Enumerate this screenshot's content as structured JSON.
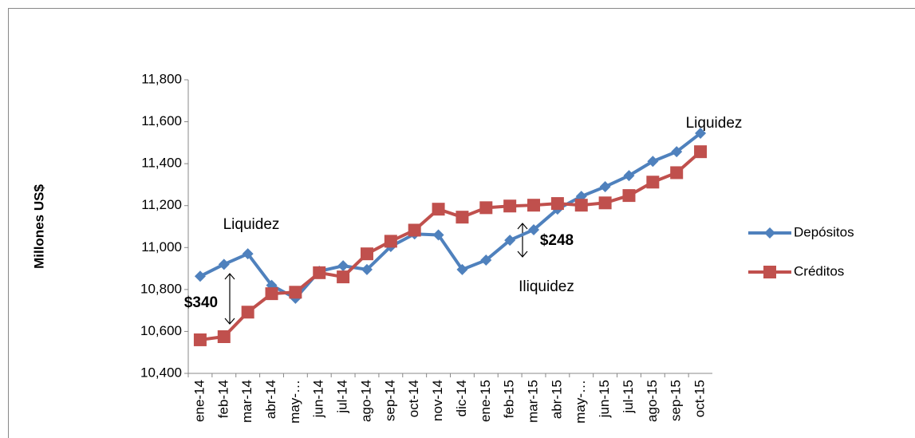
{
  "chart_data": {
    "type": "line",
    "y_label": "Millones US$",
    "categories": [
      "ene-14",
      "feb-14",
      "mar-14",
      "abr-14",
      "may-…",
      "jun-14",
      "jul-14",
      "ago-14",
      "sep-14",
      "oct-14",
      "nov-14",
      "dic-14",
      "ene-15",
      "feb-15",
      "mar-15",
      "abr-15",
      "may-…",
      "jun-15",
      "jul-15",
      "ago-15",
      "sep-15",
      "oct-15"
    ],
    "series": [
      {
        "name": "Depósitos",
        "color": "#4f81bd",
        "marker": "diamond",
        "values": [
          10863,
          10920,
          10970,
          10820,
          10758,
          10887,
          10913,
          10895,
          11005,
          11065,
          11060,
          10895,
          10940,
          11035,
          11085,
          11183,
          11244,
          11290,
          11343,
          11411,
          11457,
          11545
        ]
      },
      {
        "name": "Créditos",
        "color": "#c0504d",
        "marker": "square",
        "values": [
          10560,
          10575,
          10692,
          10780,
          10787,
          10880,
          10860,
          10970,
          11030,
          11083,
          11183,
          11145,
          11190,
          11198,
          11202,
          11210,
          11202,
          11213,
          11248,
          11312,
          11357,
          11457
        ]
      }
    ],
    "ylim": [
      10400,
      11800
    ],
    "yticks": [
      {
        "value": 10400,
        "label": "10,400"
      },
      {
        "value": 10600,
        "label": "10,600"
      },
      {
        "value": 10800,
        "label": "10,800"
      },
      {
        "value": 11000,
        "label": "11,000"
      },
      {
        "value": 11200,
        "label": "11,200"
      },
      {
        "value": 11400,
        "label": "11,400"
      },
      {
        "value": 11600,
        "label": "11,600"
      },
      {
        "value": 11800,
        "label": "11,800"
      }
    ],
    "annotations": [
      "Liquidez",
      "$340",
      "$248",
      "Iliquidez",
      "Liquidez"
    ],
    "legend": "right"
  }
}
